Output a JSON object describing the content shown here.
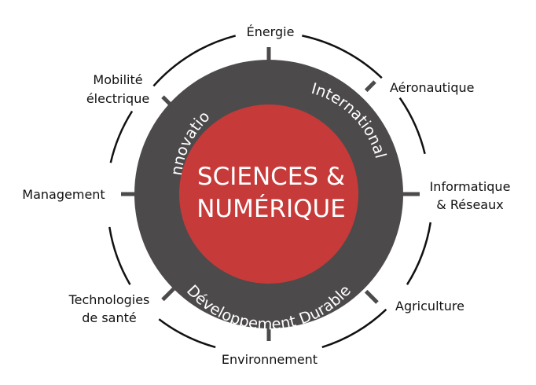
{
  "colors": {
    "core": "#c73a3a",
    "ring": "#4d4a4c",
    "outline": "#111111",
    "text_light": "#ffffff",
    "text_dark": "#111111"
  },
  "center": {
    "line1": "SCIENCES &",
    "line2": "NUMÉRIQUE"
  },
  "ring": {
    "innovation": "Innovation",
    "international": "International",
    "developpement": "Développement Durable"
  },
  "outer": {
    "energie": "Énergie",
    "aeronautique": "Aéronautique",
    "informatique_line1": "Informatique",
    "informatique_line2": "& Réseaux",
    "agriculture": "Agriculture",
    "environnement": "Environnement",
    "sante_line1": "Technologies",
    "sante_line2": "de santé",
    "management": "Management",
    "mobilite_line1": "Mobilité",
    "mobilite_line2": "électrique"
  }
}
